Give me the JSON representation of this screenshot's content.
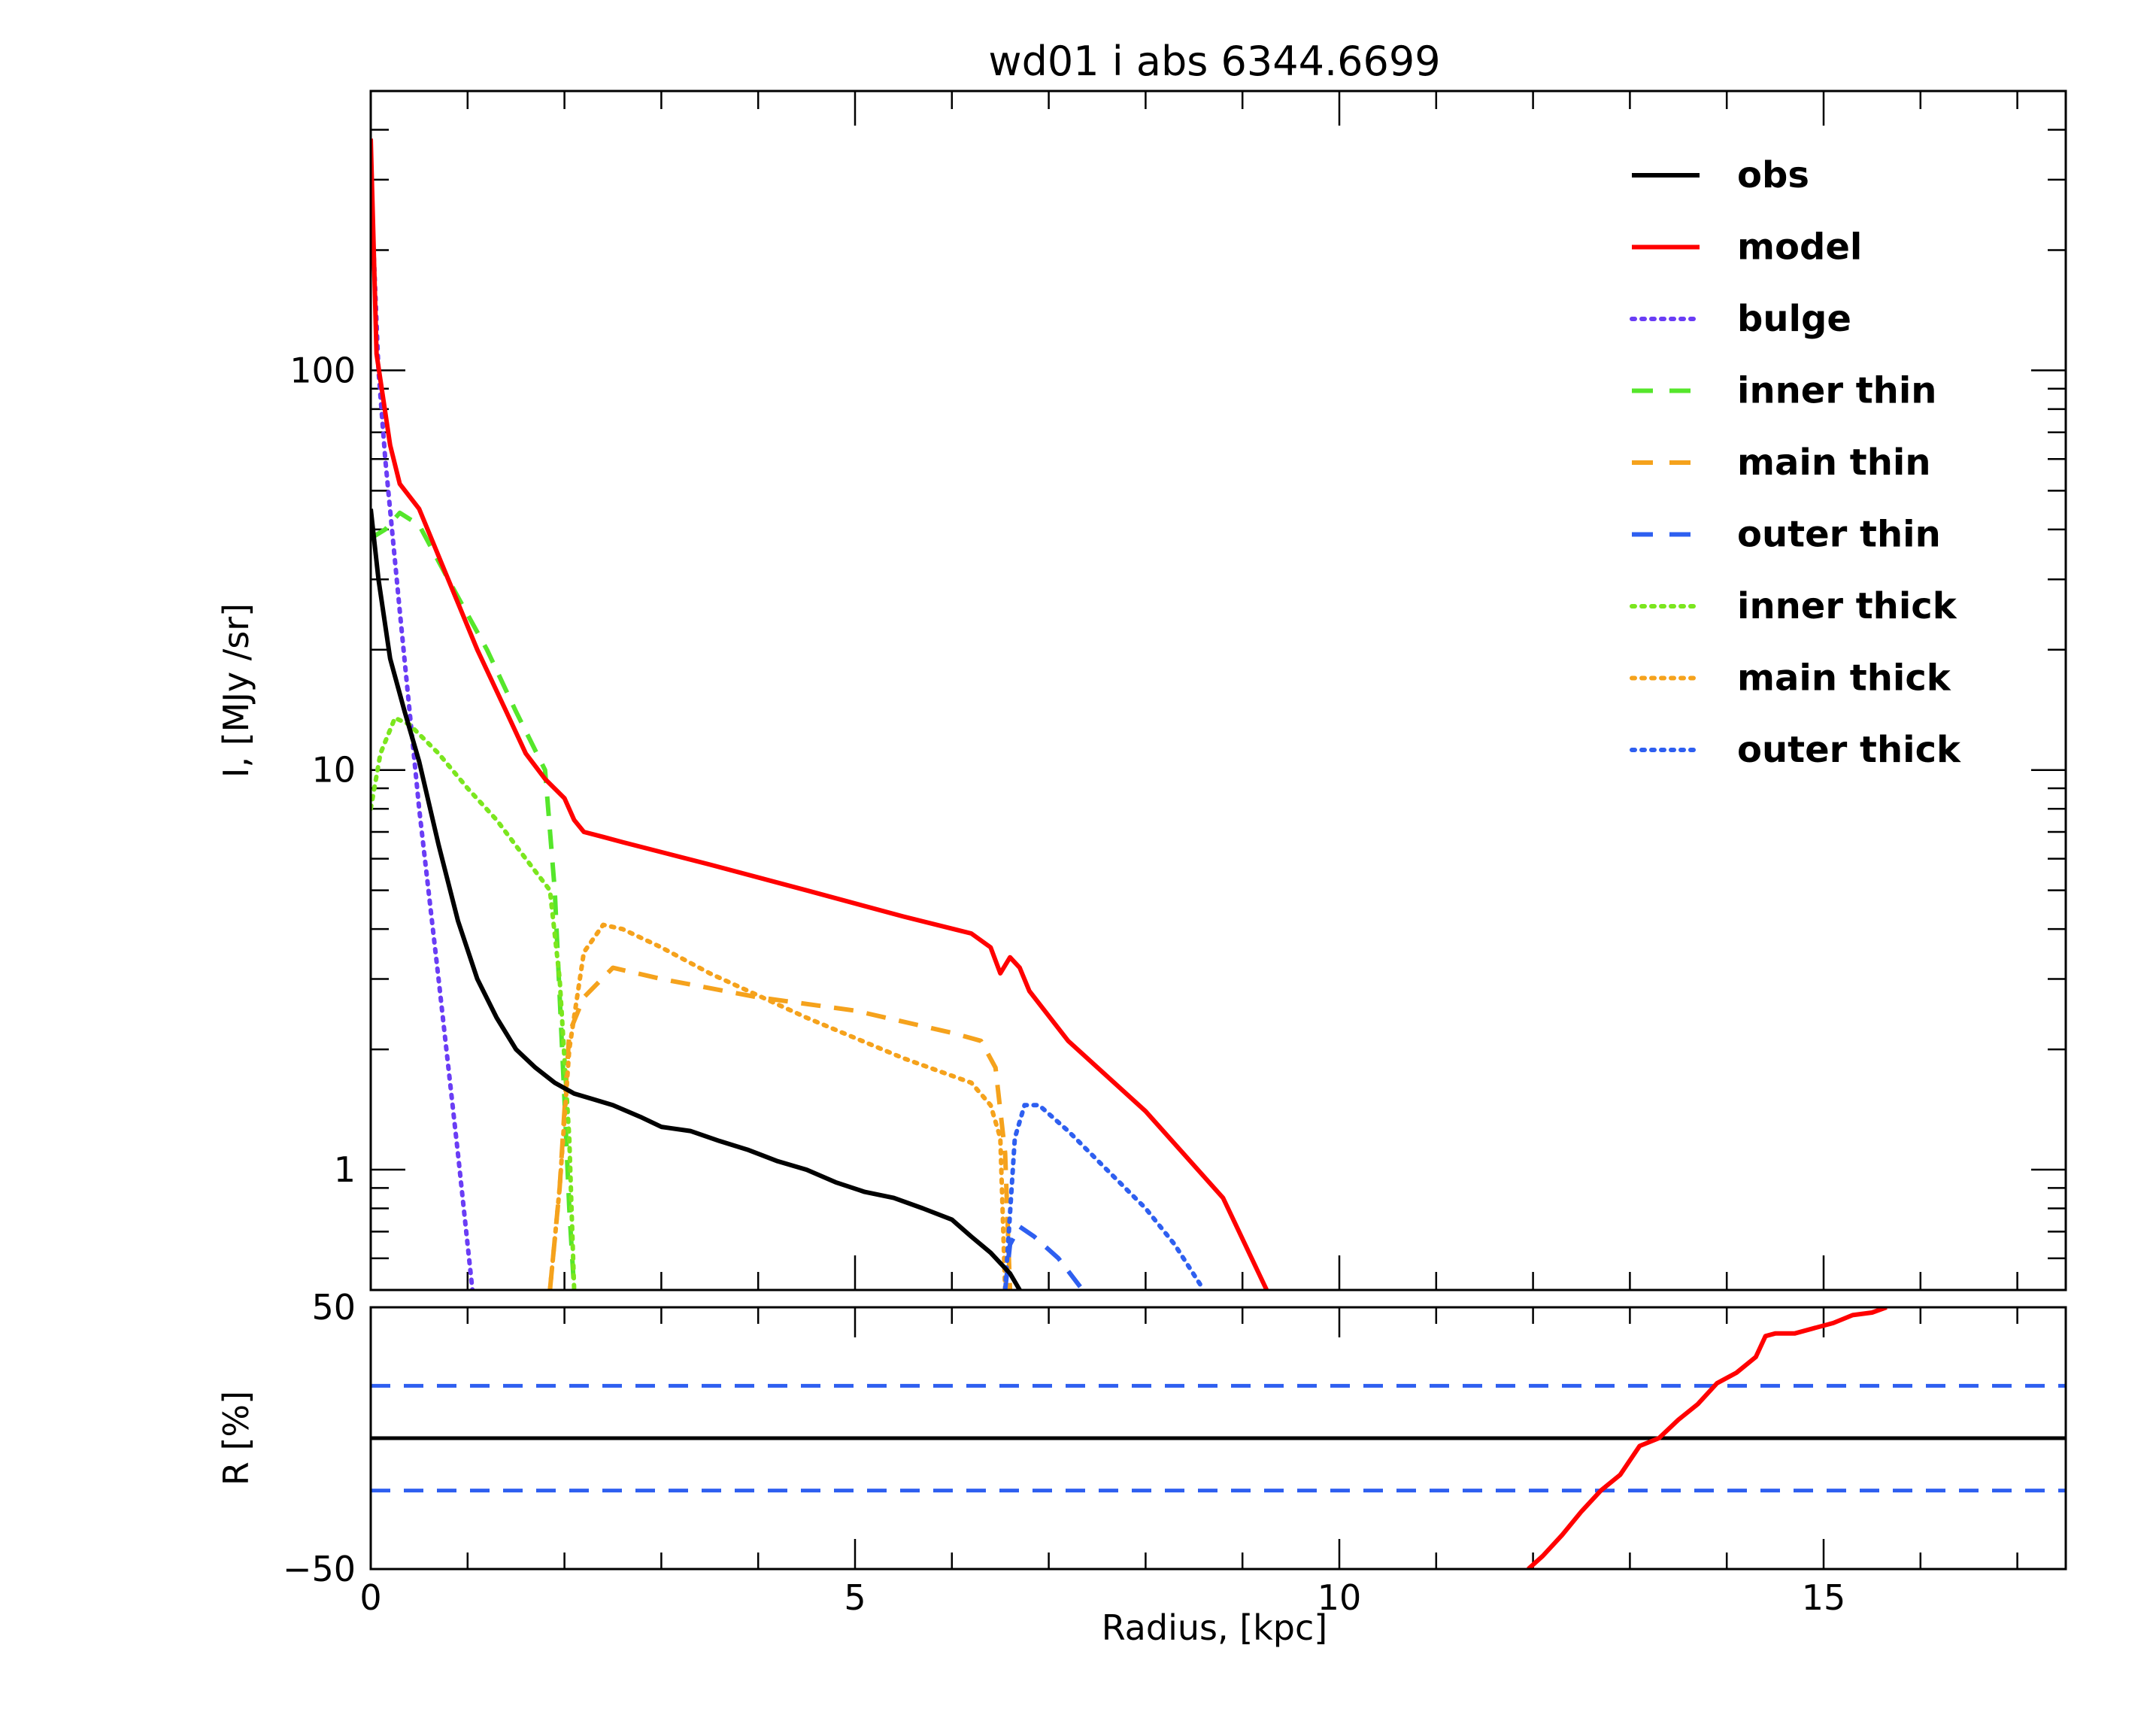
{
  "chart_data": [
    {
      "type": "line",
      "title": "wd01 i abs 6344.6699",
      "xlabel": "",
      "ylabel": "I, [MJy /sr]",
      "xlim": [
        0,
        17.5
      ],
      "ylim": [
        0.5,
        500
      ],
      "yscale": "log",
      "y_tick_labels": [
        "1",
        "10",
        "100"
      ],
      "y_ticks": [
        1,
        10,
        100
      ],
      "legend_position": "top-right",
      "series": [
        {
          "name": "obs",
          "color": "#000000",
          "dash": "solid",
          "x": [
            0,
            0.08,
            0.2,
            0.35,
            0.5,
            0.7,
            0.9,
            1.1,
            1.3,
            1.5,
            1.7,
            1.9,
            2.1,
            2.3,
            2.5,
            2.8,
            3.0,
            3.3,
            3.6,
            3.9,
            4.2,
            4.5,
            4.8,
            5.1,
            5.4,
            5.7,
            6.0,
            6.2,
            6.4,
            6.6,
            6.7
          ],
          "y": [
            45,
            30,
            19,
            14,
            10.5,
            6.5,
            4.2,
            3.0,
            2.4,
            2.0,
            1.8,
            1.65,
            1.55,
            1.5,
            1.45,
            1.35,
            1.28,
            1.25,
            1.18,
            1.12,
            1.05,
            1.0,
            0.93,
            0.88,
            0.85,
            0.8,
            0.75,
            0.68,
            0.62,
            0.55,
            0.5
          ]
        },
        {
          "name": "model",
          "color": "#ff0000",
          "dash": "solid",
          "x": [
            0,
            0.06,
            0.2,
            0.3,
            0.5,
            0.8,
            1.1,
            1.4,
            1.6,
            1.8,
            2.0,
            2.1,
            2.2,
            2.4,
            2.6,
            3.5,
            4.5,
            5.5,
            6.2,
            6.4,
            6.5,
            6.6,
            6.7,
            6.8,
            7.2,
            8.0,
            8.8,
            9.25
          ],
          "y": [
            380,
            110,
            65,
            52,
            45,
            30,
            20,
            14,
            11,
            9.5,
            8.5,
            7.5,
            7.0,
            6.8,
            6.6,
            5.8,
            5.0,
            4.3,
            3.9,
            3.6,
            3.1,
            3.4,
            3.2,
            2.8,
            2.1,
            1.4,
            0.85,
            0.5
          ]
        },
        {
          "name": "bulge",
          "color": "#6a3df5",
          "dash": "dot",
          "x": [
            0,
            0.08,
            0.15,
            0.3,
            0.5,
            0.7,
            0.9,
            1.05
          ],
          "y": [
            300,
            100,
            60,
            25,
            8,
            3,
            1.1,
            0.5
          ]
        },
        {
          "name": "inner thin",
          "color": "#55e62b",
          "dash": "dash",
          "x": [
            0,
            0.15,
            0.3,
            0.5,
            0.8,
            1.2,
            1.5,
            1.8,
            1.9,
            2.0,
            2.05,
            2.1
          ],
          "y": [
            38,
            40,
            44,
            41,
            30,
            20,
            14,
            10,
            5,
            1.5,
            0.8,
            0.5
          ]
        },
        {
          "name": "main thin",
          "color": "#f5a21c",
          "dash": "dash",
          "x": [
            1.85,
            1.95,
            2.05,
            2.2,
            2.5,
            3.0,
            4.0,
            5.0,
            6.0,
            6.3,
            6.45,
            6.55,
            6.6
          ],
          "y": [
            0.5,
            0.9,
            2.2,
            2.7,
            3.2,
            3.0,
            2.7,
            2.5,
            2.2,
            2.1,
            1.8,
            1.1,
            0.5
          ]
        },
        {
          "name": "outer thin",
          "color": "#2e5ff0",
          "dash": "dash",
          "x": [
            6.55,
            6.6,
            6.7,
            6.85,
            7.1,
            7.35
          ],
          "y": [
            0.5,
            0.65,
            0.72,
            0.68,
            0.6,
            0.5
          ]
        },
        {
          "name": "inner thick",
          "color": "#7be61e",
          "dash": "dot",
          "x": [
            0,
            0.1,
            0.25,
            0.4,
            0.7,
            1.0,
            1.3,
            1.6,
            1.85,
            1.95,
            2.05,
            2.1
          ],
          "y": [
            8,
            11,
            13.5,
            13,
            11,
            9,
            7.5,
            6,
            5,
            3,
            1.2,
            0.5
          ]
        },
        {
          "name": "main thick",
          "color": "#f5a21c",
          "dash": "dot",
          "x": [
            1.85,
            1.95,
            2.05,
            2.2,
            2.4,
            2.6,
            3.0,
            3.5,
            4.5,
            5.5,
            6.2,
            6.4,
            6.5,
            6.55
          ],
          "y": [
            0.5,
            0.9,
            2.0,
            3.5,
            4.1,
            4.0,
            3.6,
            3.1,
            2.4,
            1.9,
            1.65,
            1.45,
            1.2,
            0.5
          ]
        },
        {
          "name": "outer thick",
          "color": "#2e5ff0",
          "dash": "dot",
          "x": [
            6.55,
            6.65,
            6.75,
            6.9,
            7.2,
            7.6,
            8.0,
            8.3,
            8.6
          ],
          "y": [
            0.5,
            1.2,
            1.45,
            1.45,
            1.25,
            1.0,
            0.8,
            0.65,
            0.5
          ]
        }
      ]
    },
    {
      "type": "line",
      "title": "",
      "xlabel": "Radius, [kpc]",
      "ylabel": "R [%]",
      "xlim": [
        0,
        17.5
      ],
      "ylim": [
        -50,
        50
      ],
      "x_tick_labels": [
        "0",
        "5",
        "10",
        "15"
      ],
      "x_ticks": [
        0,
        5,
        10,
        15
      ],
      "y_tick_labels": [
        "−50",
        "50"
      ],
      "y_ticks": [
        -50,
        50
      ],
      "reference_lines": [
        {
          "y": 0,
          "color": "#000000",
          "dash": "solid"
        },
        {
          "y": 20,
          "color": "#2e5ff0",
          "dash": "dash"
        },
        {
          "y": -20,
          "color": "#2e5ff0",
          "dash": "dash"
        }
      ],
      "series": [
        {
          "color": "#ff0000",
          "dash": "solid",
          "x": [
            11.95,
            12.1,
            12.3,
            12.5,
            12.7,
            12.9,
            13.1,
            13.3,
            13.5,
            13.7,
            13.9,
            14.1,
            14.3,
            14.4,
            14.5,
            14.7,
            14.9,
            15.1,
            15.3,
            15.5,
            15.65
          ],
          "y": [
            -50,
            -45,
            -37,
            -28,
            -20,
            -14,
            -3,
            0,
            7,
            13,
            21,
            25,
            31,
            39,
            40,
            40,
            42,
            44,
            47,
            48,
            50
          ]
        }
      ]
    }
  ],
  "legend": {
    "entries": [
      {
        "label": "obs",
        "color": "#000000",
        "dash": "solid"
      },
      {
        "label": "model",
        "color": "#ff0000",
        "dash": "solid"
      },
      {
        "label": "bulge",
        "color": "#6a3df5",
        "dash": "dot"
      },
      {
        "label": "inner  thin",
        "color": "#55e62b",
        "dash": "dash"
      },
      {
        "label": "main  thin",
        "color": "#f5a21c",
        "dash": "dash"
      },
      {
        "label": "outer  thin",
        "color": "#2e5ff0",
        "dash": "dash"
      },
      {
        "label": "inner  thick",
        "color": "#7be61e",
        "dash": "dot"
      },
      {
        "label": "main  thick",
        "color": "#f5a21c",
        "dash": "dot"
      },
      {
        "label": "outer  thick",
        "color": "#2e5ff0",
        "dash": "dot"
      }
    ]
  }
}
